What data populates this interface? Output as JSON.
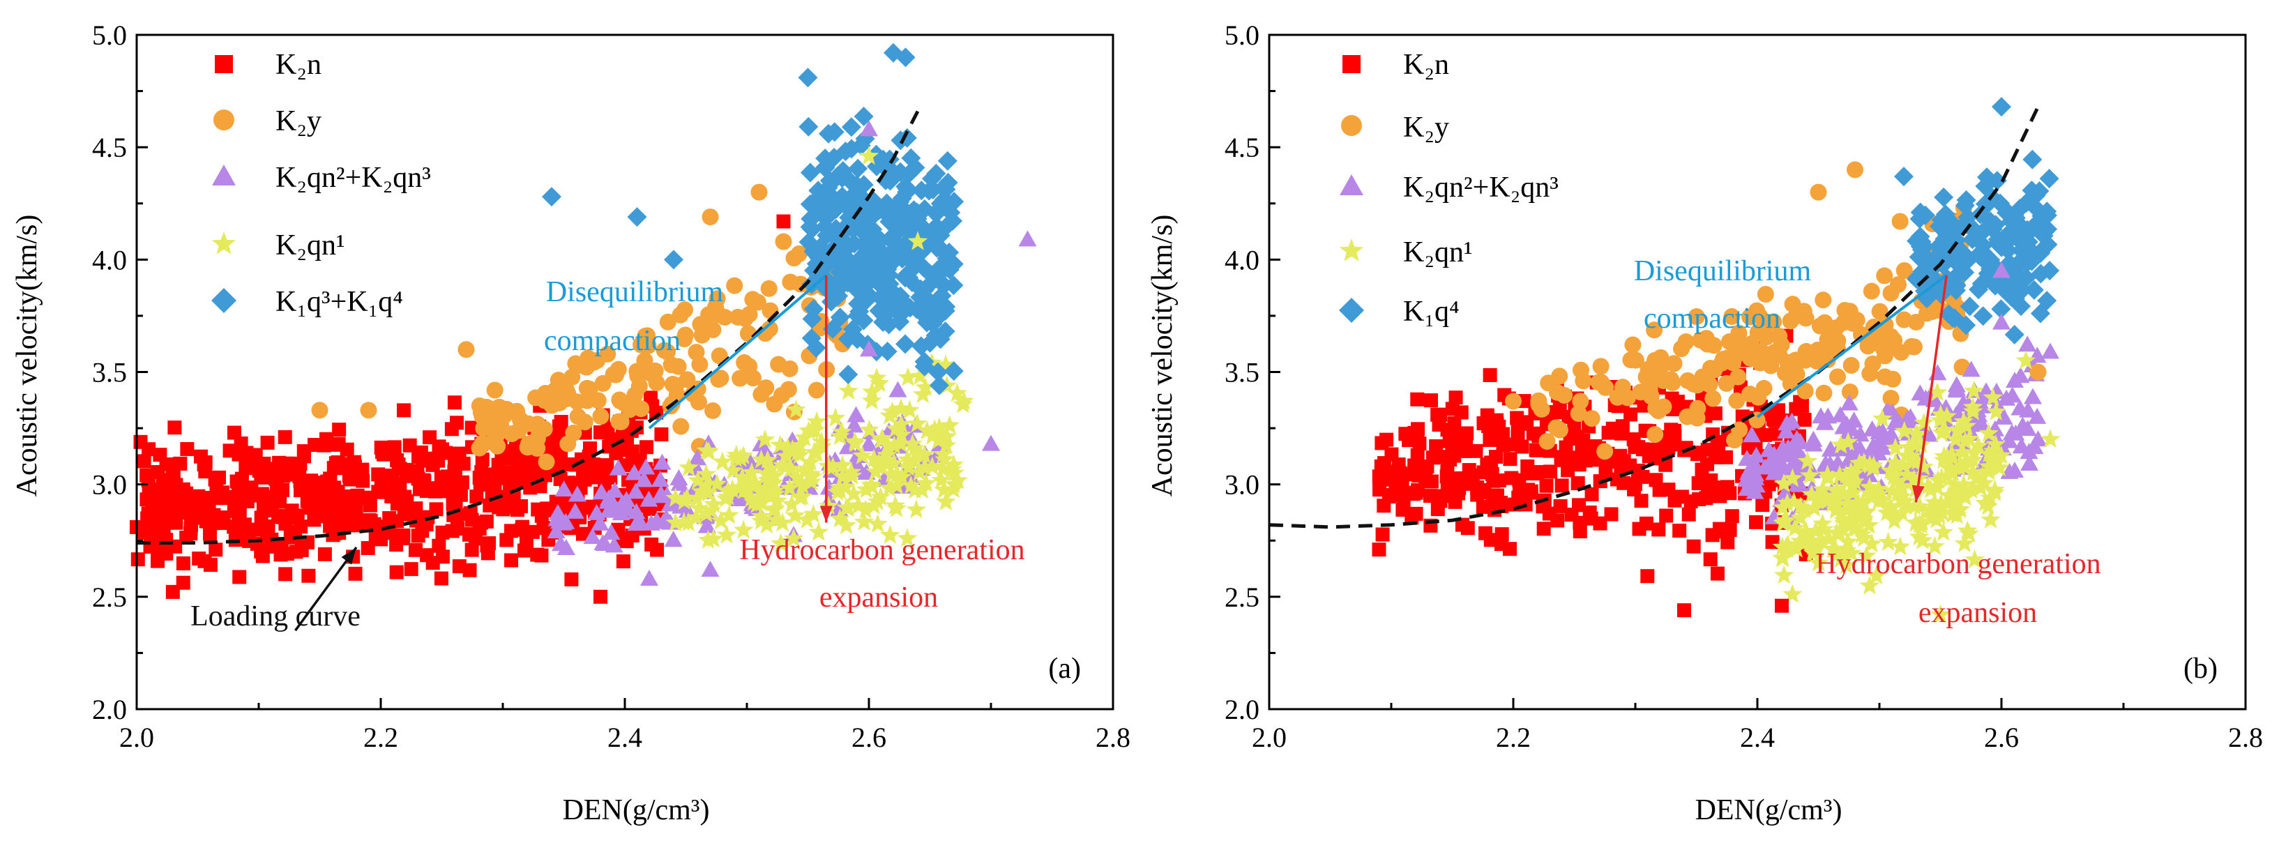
{
  "colors": {
    "K2n": "#ff0000",
    "K2y": "#f4a33a",
    "K2qn23": "#b786e6",
    "K2qn1": "#e4ea5c",
    "K1q": "#3f9ad6",
    "curve": "#111111",
    "diseq": "#1a9ad6",
    "hydro": "#e8262a",
    "loading": "#111111"
  },
  "chart_data": [
    {
      "type": "scatter",
      "panel_label": "(a)",
      "xlabel": "DEN(g/cm³)",
      "ylabel": "Acoustic velocity(km/s)",
      "xlim": [
        2.0,
        2.8
      ],
      "ylim": [
        2.0,
        5.0
      ],
      "xticks": [
        "2.0",
        "2.2",
        "2.4",
        "2.6",
        "2.8"
      ],
      "yticks": [
        "2.0",
        "2.5",
        "3.0",
        "3.5",
        "4.0",
        "4.5",
        "5.0"
      ],
      "grid": false,
      "legend_position": "top-left",
      "legend": [
        "K₂n",
        "K₂y",
        "K₂qn²+K₂qn³",
        "K₂qn¹",
        "K₁q³+K₁q⁴"
      ],
      "series": [
        {
          "name": "K₂n",
          "key": "K2n",
          "marker": "square",
          "cloud": {
            "x_range": [
              2.0,
              2.43
            ],
            "y_min": [
              2.48,
              2.5
            ],
            "y_max": [
              3.25,
              3.55
            ],
            "count": 620,
            "seed": 11
          }
        },
        {
          "name": "K₂y",
          "key": "K2y",
          "marker": "circle",
          "cloud": {
            "x_range": [
              2.28,
              2.58
            ],
            "y_min": [
              3.0,
              3.2
            ],
            "y_max": [
              3.5,
              4.3
            ],
            "count": 170,
            "seed": 22
          }
        },
        {
          "name": "K₂qn²+K₂qn³",
          "key": "K2qn23",
          "marker": "triangle",
          "cloud": {
            "x_range": [
              2.34,
              2.66
            ],
            "y_min": [
              2.6,
              2.8
            ],
            "y_max": [
              3.05,
              3.6
            ],
            "count": 150,
            "seed": 33
          }
        },
        {
          "name": "K₂qn¹",
          "key": "K2qn1",
          "marker": "star",
          "cloud": {
            "x_range": [
              2.44,
              2.68
            ],
            "y_min": [
              2.6,
              2.7
            ],
            "y_max": [
              3.2,
              3.7
            ],
            "count": 230,
            "seed": 44
          }
        },
        {
          "name": "K₁q³+K₁q⁴",
          "key": "K1q",
          "marker": "diamond",
          "cloud": {
            "x_range": [
              2.55,
              2.67
            ],
            "y_min": [
              3.4,
              3.3
            ],
            "y_max": [
              4.8,
              4.65
            ],
            "count": 340,
            "seed": 55
          }
        }
      ],
      "extra_points": [
        {
          "key": "K2y",
          "x": [
            2.15,
            2.19,
            2.27,
            2.47,
            2.51,
            2.53
          ],
          "y": [
            3.33,
            3.33,
            3.6,
            4.19,
            4.3,
            4.08
          ]
        },
        {
          "key": "K2qn23",
          "x": [
            2.42,
            2.47,
            2.6,
            2.7,
            2.73,
            2.6
          ],
          "y": [
            2.58,
            2.62,
            4.58,
            3.18,
            4.09,
            3.6
          ]
        },
        {
          "key": "K1q",
          "x": [
            2.34,
            2.41,
            2.44,
            2.55,
            2.62,
            2.63
          ],
          "y": [
            4.28,
            4.19,
            4.0,
            4.81,
            4.92,
            4.9
          ]
        },
        {
          "key": "K2n",
          "x": [
            2.08,
            2.09,
            2.0,
            2.53,
            2.38
          ],
          "y": [
            3.23,
            3.14,
            2.81,
            4.17,
            2.5
          ]
        },
        {
          "key": "K2qn1",
          "x": [
            2.6,
            2.64,
            2.67
          ],
          "y": [
            4.46,
            4.08,
            3.05
          ]
        }
      ],
      "loading_curve": {
        "x": [
          2.0,
          2.05,
          2.1,
          2.15,
          2.2,
          2.25,
          2.3,
          2.35,
          2.4,
          2.45,
          2.5,
          2.55,
          2.6,
          2.62,
          2.64
        ],
        "y": [
          2.74,
          2.74,
          2.75,
          2.77,
          2.8,
          2.86,
          2.95,
          3.06,
          3.2,
          3.4,
          3.63,
          3.9,
          4.28,
          4.45,
          4.66
        ]
      },
      "diseq_line": {
        "x": [
          2.42,
          2.565
        ],
        "y": [
          3.25,
          3.93
        ]
      },
      "hydro_arrow": {
        "x": [
          2.565,
          2.565
        ],
        "y": [
          3.93,
          2.83
        ]
      },
      "loading_arrow": {
        "x": [
          2.13,
          2.18
        ],
        "y": [
          2.35,
          2.72
        ]
      },
      "annotations": {
        "diseq_line1": "Disequilibrium",
        "diseq_line2": "compaction",
        "hydro_line1": "Hydrocarbon generation",
        "hydro_line2": "expansion",
        "loading": "Loading curve"
      }
    },
    {
      "type": "scatter",
      "panel_label": "(b)",
      "xlabel": "DEN(g/cm³)",
      "ylabel": "Acoustic velocity(km/s)",
      "xlim": [
        2.0,
        2.8
      ],
      "ylim": [
        2.0,
        5.0
      ],
      "xticks": [
        "2.0",
        "2.2",
        "2.4",
        "2.6",
        "2.8"
      ],
      "yticks": [
        "2.0",
        "2.5",
        "3.0",
        "3.5",
        "4.0",
        "4.5",
        "5.0"
      ],
      "grid": false,
      "legend_position": "top-left",
      "legend": [
        "K₂n",
        "K₂y",
        "K₂qn²+K₂qn³",
        "K₂qn¹",
        "K₁q⁴"
      ],
      "series": [
        {
          "name": "K₂n",
          "key": "K2n",
          "marker": "square",
          "cloud": {
            "x_range": [
              2.09,
              2.44
            ],
            "y_min": [
              2.7,
              2.45
            ],
            "y_max": [
              3.45,
              3.85
            ],
            "count": 380,
            "seed": 66
          }
        },
        {
          "name": "K₂y",
          "key": "K2y",
          "marker": "circle",
          "cloud": {
            "x_range": [
              2.22,
              2.57
            ],
            "y_min": [
              3.0,
              3.3
            ],
            "y_max": [
              3.6,
              4.3
            ],
            "count": 200,
            "seed": 77
          }
        },
        {
          "name": "K₂qn²+K₂qn³",
          "key": "K2qn23",
          "marker": "triangle",
          "cloud": {
            "x_range": [
              2.39,
              2.63
            ],
            "y_min": [
              2.8,
              2.9
            ],
            "y_max": [
              3.3,
              3.7
            ],
            "count": 210,
            "seed": 88
          }
        },
        {
          "name": "K₂qn¹",
          "key": "K2qn1",
          "marker": "star",
          "cloud": {
            "x_range": [
              2.42,
              2.6
            ],
            "y_min": [
              2.45,
              2.6
            ],
            "y_max": [
              3.1,
              3.7
            ],
            "count": 260,
            "seed": 99
          }
        },
        {
          "name": "K₁q⁴",
          "key": "K1q",
          "marker": "diamond",
          "cloud": {
            "x_range": [
              2.53,
              2.64
            ],
            "y_min": [
              3.7,
              3.5
            ],
            "y_max": [
              4.35,
              4.65
            ],
            "count": 170,
            "seed": 111
          }
        }
      ],
      "extra_points": [
        {
          "key": "K2n",
          "x": [
            2.09,
            2.11,
            2.14,
            2.34,
            2.42
          ],
          "y": [
            2.71,
            2.94,
            3.31,
            2.44,
            2.46
          ]
        },
        {
          "key": "K2y",
          "x": [
            2.2,
            2.48,
            2.45,
            2.63
          ],
          "y": [
            3.37,
            4.4,
            4.3,
            3.5
          ]
        },
        {
          "key": "K2qn23",
          "x": [
            2.64,
            2.63,
            2.6,
            2.6
          ],
          "y": [
            3.59,
            3.2,
            3.95,
            3.72
          ]
        },
        {
          "key": "K2qn1",
          "x": [
            2.64,
            2.62,
            2.55
          ],
          "y": [
            3.2,
            3.55,
            2.42
          ]
        },
        {
          "key": "K1q",
          "x": [
            2.6,
            2.52
          ],
          "y": [
            4.68,
            4.37
          ]
        }
      ],
      "loading_curve": {
        "x": [
          2.0,
          2.05,
          2.1,
          2.15,
          2.2,
          2.25,
          2.3,
          2.35,
          2.4,
          2.45,
          2.5,
          2.55,
          2.6,
          2.63
        ],
        "y": [
          2.82,
          2.81,
          2.82,
          2.84,
          2.89,
          2.97,
          3.06,
          3.17,
          3.32,
          3.5,
          3.72,
          3.98,
          4.34,
          4.68
        ]
      },
      "diseq_line": {
        "x": [
          2.4,
          2.555
        ],
        "y": [
          3.3,
          3.93
        ]
      },
      "hydro_arrow": {
        "x": [
          2.555,
          2.53
        ],
        "y": [
          3.93,
          2.92
        ]
      },
      "annotations": {
        "diseq_line1": "Disequilibrium",
        "diseq_line2": "compaction",
        "hydro_line1": "Hydrocarbon generation",
        "hydro_line2": "expansion"
      }
    }
  ]
}
